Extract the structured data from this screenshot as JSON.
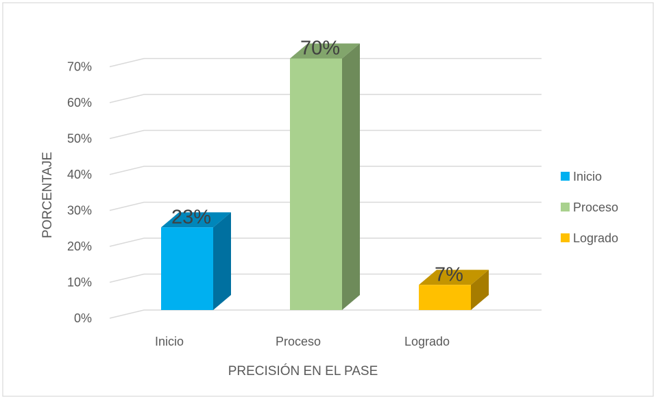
{
  "chart_data": {
    "type": "bar",
    "style": "3d-column",
    "title": "",
    "xlabel": "PRECISIÓN EN EL PASE",
    "ylabel": "PORCENTAJE",
    "categories": [
      "Inicio",
      "Proceso",
      "Logrado"
    ],
    "values": [
      23,
      70,
      7
    ],
    "data_labels": [
      "23%",
      "70%",
      "7%"
    ],
    "ylim": [
      0,
      70
    ],
    "y_ticks": [
      0,
      10,
      20,
      30,
      40,
      50,
      60,
      70
    ],
    "y_tick_labels": [
      "0%",
      "10%",
      "20%",
      "30%",
      "40%",
      "50%",
      "60%",
      "70%"
    ],
    "grid": true,
    "legend": {
      "position": "right",
      "entries": [
        "Inicio",
        "Proceso",
        "Logrado"
      ]
    },
    "colors": {
      "front": [
        "#00B0F0",
        "#A9D18E",
        "#FFC000"
      ],
      "side": [
        "#0070A0",
        "#6E8B5A",
        "#A67C00"
      ],
      "top": [
        "#0086BA",
        "#82A56C",
        "#C49500"
      ],
      "grid": "#D9D9D9",
      "border": "#D9D9D9",
      "text": "#595959"
    }
  }
}
